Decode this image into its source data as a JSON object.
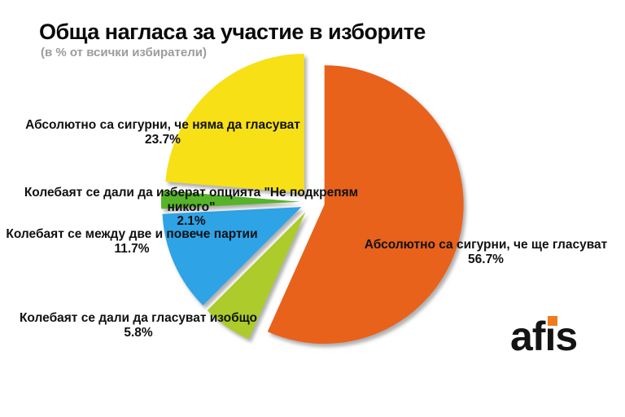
{
  "title": "Обща нагласа за участие в изборите",
  "subtitle": "(в % от всички избиратели)",
  "logo": {
    "text": "afis",
    "dot_color": "#f07b1f"
  },
  "slices": [
    {
      "name": "sure-will-vote",
      "label": "Абсолютно са сигурни, че ще гласуват",
      "pct": "56.7%",
      "value": 56.7,
      "color": "#E8621A"
    },
    {
      "name": "hesitant-vote-at-all",
      "label": "Колебаят се дали да гласуват изобщо",
      "pct": "5.8%",
      "value": 5.8,
      "color": "#ADCB2C"
    },
    {
      "name": "hesitant-between-parties",
      "label": "Колебаят се между две и повече партии",
      "pct": "11.7%",
      "value": 11.7,
      "color": "#2EA3E6"
    },
    {
      "name": "hesitant-support-no-one",
      "label": "Колебаят се дали да изберат опцията \"Не подкрепям никого\"",
      "pct": "2.1%",
      "value": 2.1,
      "color": "#56B32B"
    },
    {
      "name": "sure-wont-vote",
      "label": "Абсолютно са сигурни, че няма да гласуват",
      "pct": "23.7%",
      "value": 23.7,
      "color": "#F7E013"
    }
  ],
  "chart_data": {
    "type": "pie",
    "title": "Обща нагласа за участие в изборите",
    "subtitle": "(в % от всички избиратели)",
    "labels": [
      "Абсолютно са сигурни, че ще гласуват",
      "Колебаят се дали да гласуват изобщо",
      "Колебаят се между две и повече партии",
      "Колебаят се дали да изберат опцията \"Не подкрепям никого\"",
      "Абсолютно са сигурни, че няма да гласуват"
    ],
    "values": [
      56.7,
      5.8,
      11.7,
      2.1,
      23.7
    ],
    "colors": [
      "#E8621A",
      "#ADCB2C",
      "#2EA3E6",
      "#56B32B",
      "#F7E013"
    ],
    "start_angle_deg": 0,
    "direction": "clockwise",
    "exploded": true,
    "legend": "none",
    "data_labels": "outside, name + percent"
  }
}
